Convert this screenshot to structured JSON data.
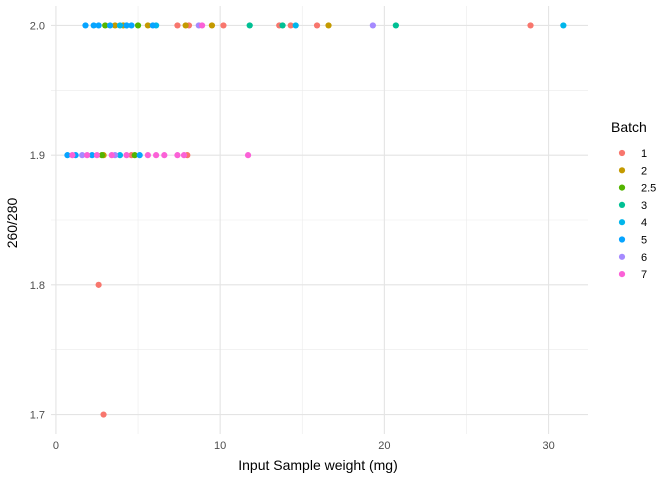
{
  "chart_data": {
    "type": "scatter",
    "title": "",
    "xlabel": "Input Sample weight  (mg)",
    "ylabel": "260/280",
    "xlim": [
      -0.3,
      32.4
    ],
    "ylim": [
      1.685,
      2.015
    ],
    "x_ticks": [
      0,
      10,
      20,
      30
    ],
    "x_tick_labels": [
      "0",
      "10",
      "20",
      "30"
    ],
    "y_ticks": [
      1.7,
      1.8,
      1.9,
      2.0
    ],
    "y_tick_labels": [
      "1.7",
      "1.8",
      "1.9",
      "2.0"
    ],
    "grid": true,
    "legend": {
      "title": "Batch",
      "position": "right"
    },
    "series": [
      {
        "name": "1",
        "color": "#F8766D",
        "points": [
          [
            7.4,
            2.0
          ],
          [
            8.1,
            2.0
          ],
          [
            10.2,
            2.0
          ],
          [
            13.6,
            2.0
          ],
          [
            14.3,
            2.0
          ],
          [
            15.9,
            2.0
          ],
          [
            28.9,
            2.0
          ],
          [
            4.6,
            1.9
          ],
          [
            8.0,
            1.9
          ],
          [
            2.6,
            1.8
          ],
          [
            2.9,
            1.7
          ]
        ]
      },
      {
        "name": "2",
        "color": "#C49A00",
        "points": [
          [
            3.6,
            2.0
          ],
          [
            4.1,
            2.0
          ],
          [
            5.6,
            2.0
          ],
          [
            7.9,
            2.0
          ],
          [
            9.5,
            2.0
          ],
          [
            16.6,
            2.0
          ],
          [
            2.9,
            1.9
          ]
        ]
      },
      {
        "name": "2.5",
        "color": "#53B400",
        "points": [
          [
            3.0,
            2.0
          ],
          [
            5.0,
            2.0
          ],
          [
            2.8,
            1.9
          ],
          [
            4.8,
            1.9
          ]
        ]
      },
      {
        "name": "3",
        "color": "#00C094",
        "points": [
          [
            11.8,
            2.0
          ],
          [
            13.8,
            2.0
          ],
          [
            20.7,
            2.0
          ]
        ]
      },
      {
        "name": "4",
        "color": "#00B6EB",
        "points": [
          [
            3.9,
            2.0
          ],
          [
            6.1,
            2.0
          ],
          [
            14.6,
            2.0
          ],
          [
            30.9,
            2.0
          ],
          [
            3.9,
            1.9
          ]
        ]
      },
      {
        "name": "5",
        "color": "#06A4FF",
        "points": [
          [
            1.8,
            2.0
          ],
          [
            2.3,
            2.0
          ],
          [
            2.6,
            2.0
          ],
          [
            3.3,
            2.0
          ],
          [
            4.3,
            2.0
          ],
          [
            4.6,
            2.0
          ],
          [
            5.9,
            2.0
          ],
          [
            0.7,
            1.9
          ],
          [
            1.2,
            1.9
          ],
          [
            2.2,
            1.9
          ],
          [
            5.1,
            1.9
          ]
        ]
      },
      {
        "name": "6",
        "color": "#A58AFF",
        "points": [
          [
            8.7,
            2.0
          ],
          [
            19.3,
            2.0
          ],
          [
            1.6,
            1.9
          ],
          [
            3.6,
            1.9
          ]
        ]
      },
      {
        "name": "7",
        "color": "#FB61D7",
        "points": [
          [
            8.9,
            2.0
          ],
          [
            1.0,
            1.9
          ],
          [
            1.9,
            1.9
          ],
          [
            2.5,
            1.9
          ],
          [
            3.4,
            1.9
          ],
          [
            4.3,
            1.9
          ],
          [
            5.6,
            1.9
          ],
          [
            6.1,
            1.9
          ],
          [
            6.6,
            1.9
          ],
          [
            7.4,
            1.9
          ],
          [
            7.8,
            1.9
          ],
          [
            11.7,
            1.9
          ]
        ]
      }
    ]
  }
}
